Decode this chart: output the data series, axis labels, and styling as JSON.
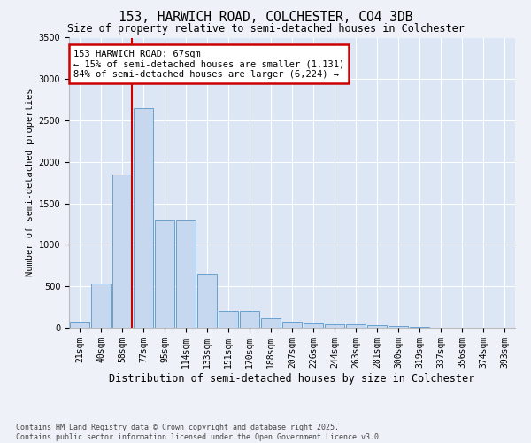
{
  "title1": "153, HARWICH ROAD, COLCHESTER, CO4 3DB",
  "title2": "Size of property relative to semi-detached houses in Colchester",
  "xlabel": "Distribution of semi-detached houses by size in Colchester",
  "ylabel": "Number of semi-detached properties",
  "footnote1": "Contains HM Land Registry data © Crown copyright and database right 2025.",
  "footnote2": "Contains public sector information licensed under the Open Government Licence v3.0.",
  "categories": [
    "21sqm",
    "40sqm",
    "58sqm",
    "77sqm",
    "95sqm",
    "114sqm",
    "133sqm",
    "151sqm",
    "170sqm",
    "188sqm",
    "207sqm",
    "226sqm",
    "244sqm",
    "263sqm",
    "281sqm",
    "300sqm",
    "319sqm",
    "337sqm",
    "356sqm",
    "374sqm",
    "393sqm"
  ],
  "values": [
    80,
    530,
    1850,
    2650,
    1300,
    1300,
    650,
    200,
    200,
    120,
    80,
    50,
    40,
    40,
    30,
    20,
    10,
    5,
    5,
    3,
    2
  ],
  "bar_color": "#c5d8f0",
  "bar_edge_color": "#5a96c8",
  "annotation_text": "153 HARWICH ROAD: 67sqm\n← 15% of semi-detached houses are smaller (1,131)\n84% of semi-detached houses are larger (6,224) →",
  "annotation_box_color": "#ffffff",
  "annotation_box_edge": "#cc0000",
  "red_line_color": "#cc0000",
  "background_color": "#eef2f8",
  "plot_background": "#dce6f5",
  "ylim": [
    0,
    3500
  ],
  "yticks": [
    0,
    500,
    1000,
    1500,
    2000,
    2500,
    3000,
    3500
  ],
  "grid_color": "#ffffff",
  "title1_fontsize": 10.5,
  "title2_fontsize": 8.5,
  "ylabel_fontsize": 7.5,
  "xlabel_fontsize": 8.5,
  "tick_fontsize": 7,
  "annot_fontsize": 7.5,
  "footnote_fontsize": 6
}
